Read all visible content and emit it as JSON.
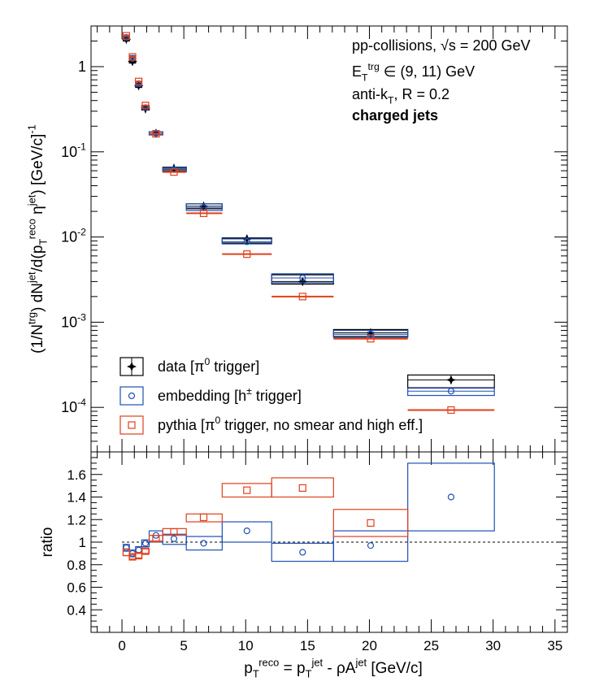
{
  "chart_data": [
    {
      "type": "scatter",
      "panel": "spectrum",
      "ylabel": "(1/N^{trg}) dN^{jet}/d(p_{T}^{reco} η^{jet}) [GeV/c]^{-1}",
      "yscale": "log",
      "ylim": [
        3e-05,
        3
      ],
      "xlim": [
        -2.5,
        36
      ],
      "y_tick_labels": [
        "10^{-4}",
        "10^{-3}",
        "10^{-2}",
        "10^{-1}",
        "1"
      ],
      "annotations": [
        "pp-collisions, √s = 200 GeV",
        "E_{T}^{trg} ∈ (9, 11) GeV",
        "anti-k_{T}, R = 0.2",
        "charged jets"
      ],
      "legend_placement": "bottom-left",
      "series": [
        {
          "name": "data [π^{0} trigger]",
          "color": "#000000",
          "marker": "star",
          "points": [
            {
              "x": 0.35,
              "y": 2.1,
              "xlo": 0.1,
              "xhi": 0.6,
              "lo": 2.0,
              "hi": 2.25
            },
            {
              "x": 0.85,
              "y": 1.15,
              "xlo": 0.6,
              "xhi": 1.1,
              "lo": 1.1,
              "hi": 1.25
            },
            {
              "x": 1.35,
              "y": 0.6,
              "xlo": 1.1,
              "xhi": 1.6,
              "lo": 0.57,
              "hi": 0.64
            },
            {
              "x": 1.9,
              "y": 0.32,
              "xlo": 1.6,
              "xhi": 2.2,
              "lo": 0.31,
              "hi": 0.34
            },
            {
              "x": 2.75,
              "y": 0.165,
              "xlo": 2.2,
              "xhi": 3.3,
              "lo": 0.158,
              "hi": 0.172
            },
            {
              "x": 4.2,
              "y": 0.064,
              "xlo": 3.3,
              "xhi": 5.2,
              "lo": 0.06,
              "hi": 0.066
            },
            {
              "x": 6.6,
              "y": 0.023,
              "xlo": 5.2,
              "xhi": 8.1,
              "lo": 0.0215,
              "hi": 0.0245
            },
            {
              "x": 10.1,
              "y": 0.0095,
              "xlo": 8.1,
              "xhi": 12.1,
              "lo": 0.0085,
              "hi": 0.0098
            },
            {
              "x": 14.6,
              "y": 0.003,
              "xlo": 12.1,
              "xhi": 17.1,
              "lo": 0.0028,
              "hi": 0.0036
            },
            {
              "x": 20.1,
              "y": 0.00075,
              "xlo": 17.1,
              "xhi": 23.1,
              "lo": 0.00068,
              "hi": 0.00082
            },
            {
              "x": 26.6,
              "y": 0.00021,
              "xlo": 23.1,
              "xhi": 30.1,
              "lo": 0.00017,
              "hi": 0.00024
            }
          ]
        },
        {
          "name": "embedding [h^{±} trigger]",
          "color": "#1f4fb4",
          "marker": "circle",
          "points": [
            {
              "x": 0.35,
              "y": 2.2,
              "xlo": 0.1,
              "xhi": 0.6,
              "lo": 2.1,
              "hi": 2.35
            },
            {
              "x": 0.85,
              "y": 1.25,
              "xlo": 0.6,
              "xhi": 1.1,
              "lo": 1.2,
              "hi": 1.35
            },
            {
              "x": 1.35,
              "y": 0.63,
              "xlo": 1.1,
              "xhi": 1.6,
              "lo": 0.6,
              "hi": 0.67
            },
            {
              "x": 1.9,
              "y": 0.33,
              "xlo": 1.6,
              "xhi": 2.2,
              "lo": 0.32,
              "hi": 0.35
            },
            {
              "x": 2.75,
              "y": 0.165,
              "xlo": 2.2,
              "xhi": 3.3,
              "lo": 0.158,
              "hi": 0.172
            },
            {
              "x": 4.2,
              "y": 0.062,
              "xlo": 3.3,
              "xhi": 5.2,
              "lo": 0.058,
              "hi": 0.065
            },
            {
              "x": 6.6,
              "y": 0.022,
              "xlo": 5.2,
              "xhi": 8.1,
              "lo": 0.0205,
              "hi": 0.0245
            },
            {
              "x": 10.1,
              "y": 0.0088,
              "xlo": 8.1,
              "xhi": 12.1,
              "lo": 0.0083,
              "hi": 0.0097
            },
            {
              "x": 14.6,
              "y": 0.0033,
              "xlo": 12.1,
              "xhi": 17.1,
              "lo": 0.0029,
              "hi": 0.0037
            },
            {
              "x": 20.1,
              "y": 0.00072,
              "xlo": 17.1,
              "xhi": 23.1,
              "lo": 0.00066,
              "hi": 0.0008
            },
            {
              "x": 26.6,
              "y": 0.000155,
              "xlo": 23.1,
              "xhi": 30.1,
              "lo": 0.000138,
              "hi": 0.000168
            }
          ]
        },
        {
          "name": "pythia [π^{0} trigger, no smear and high eff.]",
          "color": "#e0401a",
          "marker": "square",
          "points": [
            {
              "x": 0.35,
              "y": 2.3,
              "xlo": 0.1,
              "xhi": 0.6,
              "lo": 2.3,
              "hi": 2.3
            },
            {
              "x": 0.85,
              "y": 1.3,
              "xlo": 0.6,
              "xhi": 1.1,
              "lo": 1.3,
              "hi": 1.3
            },
            {
              "x": 1.35,
              "y": 0.67,
              "xlo": 1.1,
              "xhi": 1.6,
              "lo": 0.67,
              "hi": 0.67
            },
            {
              "x": 1.9,
              "y": 0.35,
              "xlo": 1.6,
              "xhi": 2.2,
              "lo": 0.35,
              "hi": 0.35
            },
            {
              "x": 2.75,
              "y": 0.163,
              "xlo": 2.2,
              "xhi": 3.3,
              "lo": 0.163,
              "hi": 0.163
            },
            {
              "x": 4.2,
              "y": 0.058,
              "xlo": 3.3,
              "xhi": 5.2,
              "lo": 0.058,
              "hi": 0.058
            },
            {
              "x": 6.6,
              "y": 0.019,
              "xlo": 5.2,
              "xhi": 8.1,
              "lo": 0.019,
              "hi": 0.019
            },
            {
              "x": 10.1,
              "y": 0.0063,
              "xlo": 8.1,
              "xhi": 12.1,
              "lo": 0.0063,
              "hi": 0.0063
            },
            {
              "x": 14.6,
              "y": 0.002,
              "xlo": 12.1,
              "xhi": 17.1,
              "lo": 0.002,
              "hi": 0.002
            },
            {
              "x": 20.1,
              "y": 0.00064,
              "xlo": 17.1,
              "xhi": 23.1,
              "lo": 0.00064,
              "hi": 0.00064
            },
            {
              "x": 26.6,
              "y": 9.3e-05,
              "xlo": 23.1,
              "xhi": 30.1,
              "lo": 9.3e-05,
              "hi": 9.3e-05
            }
          ]
        }
      ]
    },
    {
      "type": "scatter",
      "panel": "ratio",
      "xlabel": "p_{T}^{reco} = p_{T}^{jet} - ρA^{jet} [GeV/c]",
      "ylabel": "ratio",
      "xlim": [
        -2.5,
        36
      ],
      "ylim": [
        0.2,
        1.8
      ],
      "x_tick_labels": [
        "0",
        "5",
        "10",
        "15",
        "20",
        "25",
        "30",
        "35"
      ],
      "y_tick_labels": [
        "0.4",
        "0.6",
        "0.8",
        "1",
        "1.2",
        "1.4",
        "1.6"
      ],
      "reference_line": 1.0,
      "series": [
        {
          "name": "embedding [h^{±} trigger]",
          "color": "#1f4fb4",
          "marker": "circle",
          "points": [
            {
              "x": 0.35,
              "y": 0.95,
              "xlo": 0.1,
              "xhi": 0.6,
              "lo": 0.92,
              "hi": 0.98
            },
            {
              "x": 0.85,
              "y": 0.9,
              "xlo": 0.6,
              "xhi": 1.1,
              "lo": 0.87,
              "hi": 0.93
            },
            {
              "x": 1.35,
              "y": 0.93,
              "xlo": 1.1,
              "xhi": 1.6,
              "lo": 0.9,
              "hi": 0.96
            },
            {
              "x": 1.9,
              "y": 0.99,
              "xlo": 1.6,
              "xhi": 2.2,
              "lo": 0.96,
              "hi": 1.02
            },
            {
              "x": 2.75,
              "y": 1.06,
              "xlo": 2.2,
              "xhi": 3.3,
              "lo": 1.0,
              "hi": 1.1
            },
            {
              "x": 4.2,
              "y": 1.03,
              "xlo": 3.3,
              "xhi": 5.2,
              "lo": 0.98,
              "hi": 1.07
            },
            {
              "x": 6.6,
              "y": 0.99,
              "xlo": 5.2,
              "xhi": 8.1,
              "lo": 0.93,
              "hi": 1.05
            },
            {
              "x": 10.1,
              "y": 1.1,
              "xlo": 8.1,
              "xhi": 12.1,
              "lo": 1.0,
              "hi": 1.18
            },
            {
              "x": 14.6,
              "y": 0.91,
              "xlo": 12.1,
              "xhi": 17.1,
              "lo": 0.83,
              "hi": 0.99
            },
            {
              "x": 20.1,
              "y": 0.97,
              "xlo": 17.1,
              "xhi": 23.1,
              "lo": 0.83,
              "hi": 1.1
            },
            {
              "x": 26.6,
              "y": 1.4,
              "xlo": 23.1,
              "xhi": 30.1,
              "lo": 1.1,
              "hi": 1.7
            }
          ]
        },
        {
          "name": "pythia [π^{0} trigger, no smear and high eff.]",
          "color": "#e0401a",
          "marker": "square",
          "points": [
            {
              "x": 0.35,
              "y": 0.91,
              "xlo": 0.1,
              "xhi": 0.6,
              "lo": 0.88,
              "hi": 0.94
            },
            {
              "x": 0.85,
              "y": 0.87,
              "xlo": 0.6,
              "xhi": 1.1,
              "lo": 0.85,
              "hi": 0.89
            },
            {
              "x": 1.35,
              "y": 0.88,
              "xlo": 1.1,
              "xhi": 1.6,
              "lo": 0.86,
              "hi": 0.9
            },
            {
              "x": 1.9,
              "y": 0.92,
              "xlo": 1.6,
              "xhi": 2.2,
              "lo": 0.9,
              "hi": 0.94
            },
            {
              "x": 2.75,
              "y": 1.03,
              "xlo": 2.2,
              "xhi": 3.3,
              "lo": 1.01,
              "hi": 1.06
            },
            {
              "x": 4.2,
              "y": 1.09,
              "xlo": 3.3,
              "xhi": 5.2,
              "lo": 1.06,
              "hi": 1.12
            },
            {
              "x": 6.6,
              "y": 1.22,
              "xlo": 5.2,
              "xhi": 8.1,
              "lo": 1.18,
              "hi": 1.25
            },
            {
              "x": 10.1,
              "y": 1.46,
              "xlo": 8.1,
              "xhi": 12.1,
              "lo": 1.4,
              "hi": 1.52
            },
            {
              "x": 14.6,
              "y": 1.48,
              "xlo": 12.1,
              "xhi": 17.1,
              "lo": 1.4,
              "hi": 1.57
            },
            {
              "x": 20.1,
              "y": 1.17,
              "xlo": 17.1,
              "xhi": 23.1,
              "lo": 1.05,
              "hi": 1.29
            },
            {
              "x": 26.6,
              "y": null,
              "xlo": 23.1,
              "xhi": 30.1,
              "lo": null,
              "hi": null
            }
          ]
        }
      ]
    }
  ]
}
